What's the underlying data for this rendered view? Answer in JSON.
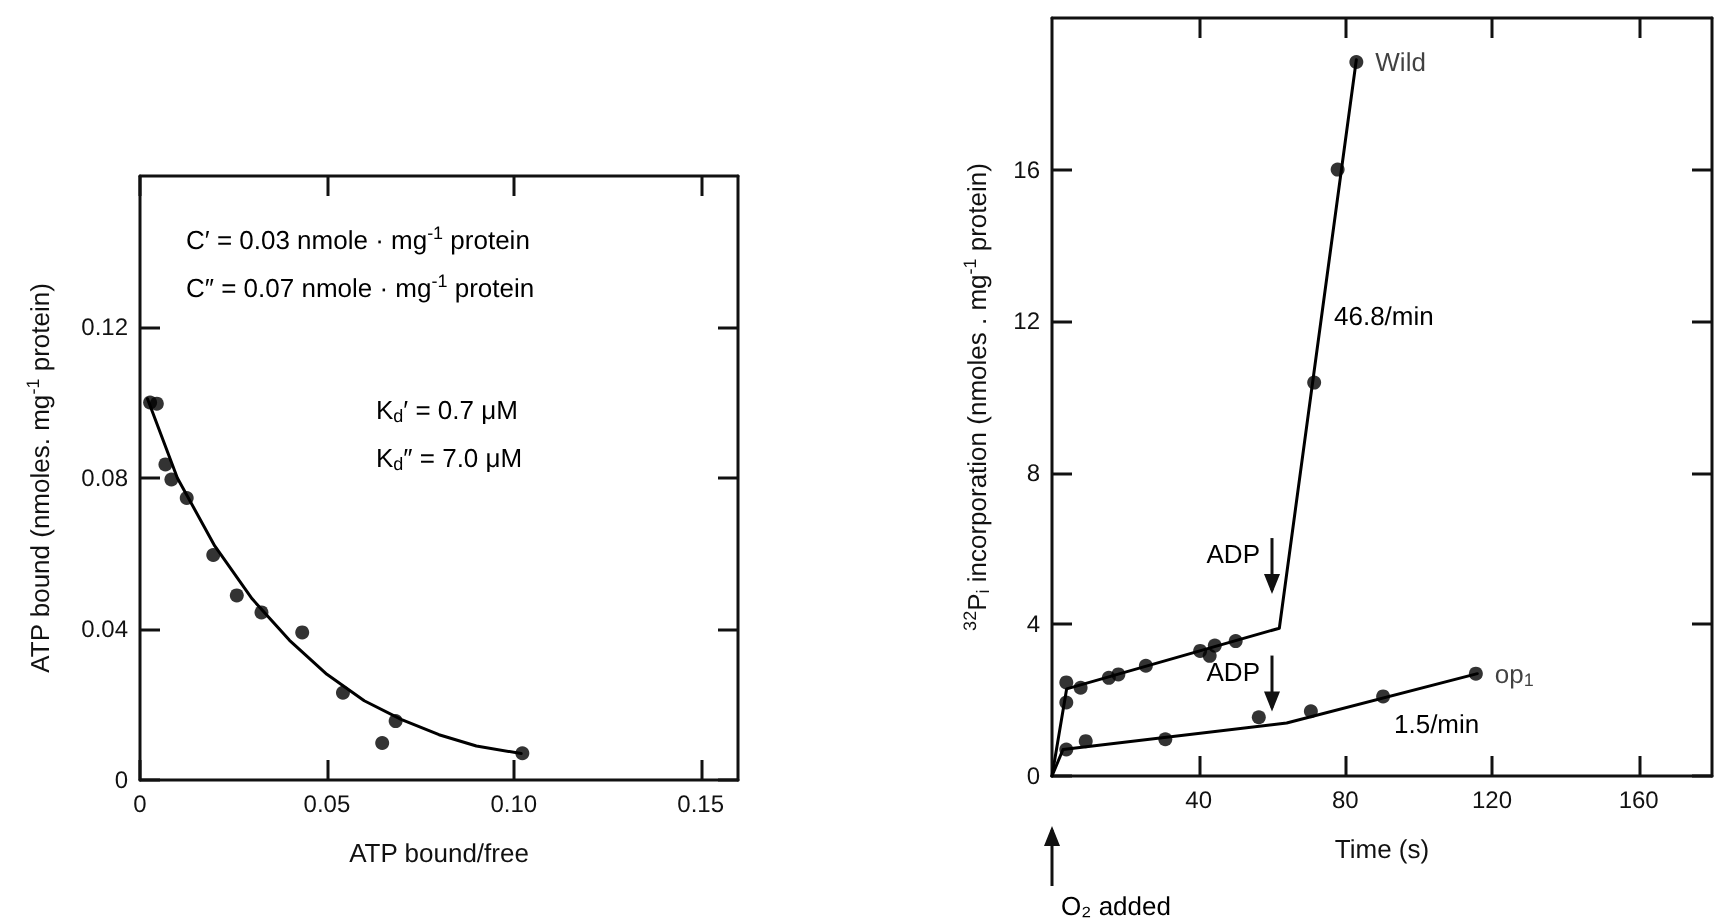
{
  "chart_data": [
    {
      "type": "scatter",
      "xlabel": "ATP bound/free",
      "ylabel": "ATP bound (nmoles. mg$^{-1}$ protein)",
      "xlim": [
        0,
        0.16
      ],
      "ylim": [
        0,
        0.16
      ],
      "xticks": [
        0,
        0.05,
        {
          "value": 0.1,
          "label": "0.10"
        },
        0.15
      ],
      "yticks": [
        0,
        0.04,
        0.08,
        0.12
      ],
      "grid": false,
      "legend": false,
      "marker": "circle",
      "series": [
        {
          "color": "#000000",
          "x": [
            0.0027,
            0.0045,
            0.0068,
            0.0084,
            0.0125,
            0.0196,
            0.0259,
            0.0325,
            0.0434,
            0.0543,
            0.0648,
            0.0684,
            0.1023
          ],
          "values": [
            0.1,
            0.0997,
            0.0836,
            0.0796,
            0.0747,
            0.0596,
            0.0489,
            0.0444,
            0.0391,
            0.0231,
            0.0098,
            0.0156,
            0.0071
          ]
        },
        {
          "type": "line",
          "marker": "none",
          "color": "#000000",
          "x": [
            0.002,
            0.01,
            0.02,
            0.03,
            0.04,
            0.05,
            0.06,
            0.07,
            0.08,
            0.09,
            0.102
          ],
          "values": [
            0.101,
            0.08,
            0.062,
            0.048,
            0.037,
            0.028,
            0.021,
            0.016,
            0.012,
            0.009,
            0.007
          ]
        }
      ],
      "annotations": [
        "C′ = 0.03 nmole · mg$^{-1}$ protein",
        "C″ = 0.07 nmole · mg$^{-1}$ protein",
        "K$_{d}$′ = 0.7 μM",
        "K$_{d}$″ = 7.0 μM"
      ]
    },
    {
      "type": "scatter",
      "xlabel": "Time (s)",
      "ylabel": "$^{32}$P$_{i}$ incorporation (nmoles . mg$^{-1}$ protein)",
      "xlim": [
        0,
        180
      ],
      "ylim": [
        0,
        20
      ],
      "xticks": [
        40,
        80,
        120,
        160
      ],
      "yticks": [
        0,
        4,
        8,
        12,
        16
      ],
      "grid": false,
      "legend": false,
      "marker": "circle",
      "series": [
        {
          "name": "Wild",
          "color": "#000000",
          "x": [
            3.9,
            3.9,
            7.8,
            15.5,
            18.1,
            25.6,
            40.4,
            43,
            44.4,
            50.1,
            71.5,
            77.9,
            83.0
          ],
          "values": [
            2.47,
            1.94,
            2.33,
            2.59,
            2.68,
            2.91,
            3.3,
            3.17,
            3.44,
            3.56,
            10.38,
            16.0,
            18.84
          ]
        },
        {
          "type": "line",
          "marker": "none",
          "color": "#000000",
          "x": [
            0,
            4,
            62,
            83
          ],
          "values": [
            0,
            2.3,
            3.9,
            18.9
          ]
        },
        {
          "name": "op$_{1}$",
          "color": "#000000",
          "x": [
            3.9,
            9.2,
            30.9,
            56.4,
            70.6,
            90.3,
            115.6
          ],
          "values": [
            0.7,
            0.92,
            0.97,
            1.55,
            1.71,
            2.1,
            2.7
          ]
        },
        {
          "type": "line",
          "marker": "none",
          "color": "#000000",
          "x": [
            0,
            3,
            64,
            116
          ],
          "values": [
            0,
            0.7,
            1.4,
            2.7
          ]
        }
      ],
      "annotations": [
        {
          "text": "ADP",
          "x": 60,
          "y": 4.8
        },
        {
          "text": "ADP",
          "x": 60,
          "y": 1.7
        },
        "46.8/min",
        "1.5/min",
        "O₂ added"
      ]
    }
  ]
}
